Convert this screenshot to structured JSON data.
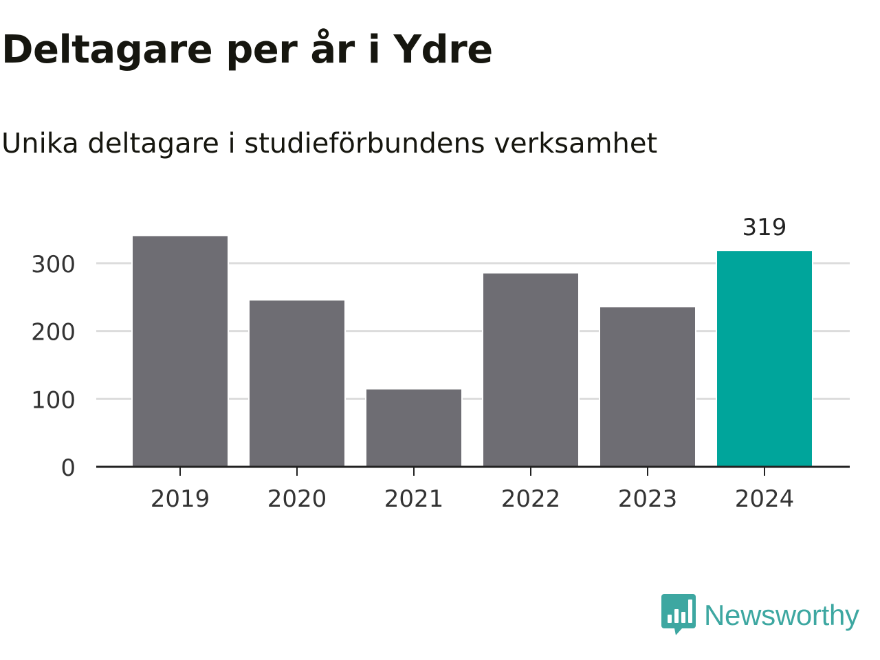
{
  "title": "Deltagare per år i Ydre",
  "subtitle": "Unika deltagare i studieförbundens verksamhet",
  "brand": {
    "name": "Newsworthy",
    "icon": "bar-chart-speech-bubble-icon"
  },
  "colors": {
    "bar": "#6e6d73",
    "highlight": "#00a59b",
    "grid": "#dcdcdc",
    "axis": "#222222",
    "text": "#333333",
    "brand": "#3da7a1"
  },
  "chart_data": {
    "type": "bar",
    "categories": [
      "2019",
      "2020",
      "2021",
      "2022",
      "2023",
      "2024"
    ],
    "values": [
      341,
      246,
      115,
      286,
      236,
      319
    ],
    "highlight_index": 5,
    "data_labels": [
      {
        "index": 5,
        "text": "319"
      }
    ],
    "yticks": [
      0,
      100,
      200,
      300
    ],
    "ylim": [
      0,
      350
    ],
    "grid": true,
    "xlabel": "",
    "ylabel": ""
  }
}
